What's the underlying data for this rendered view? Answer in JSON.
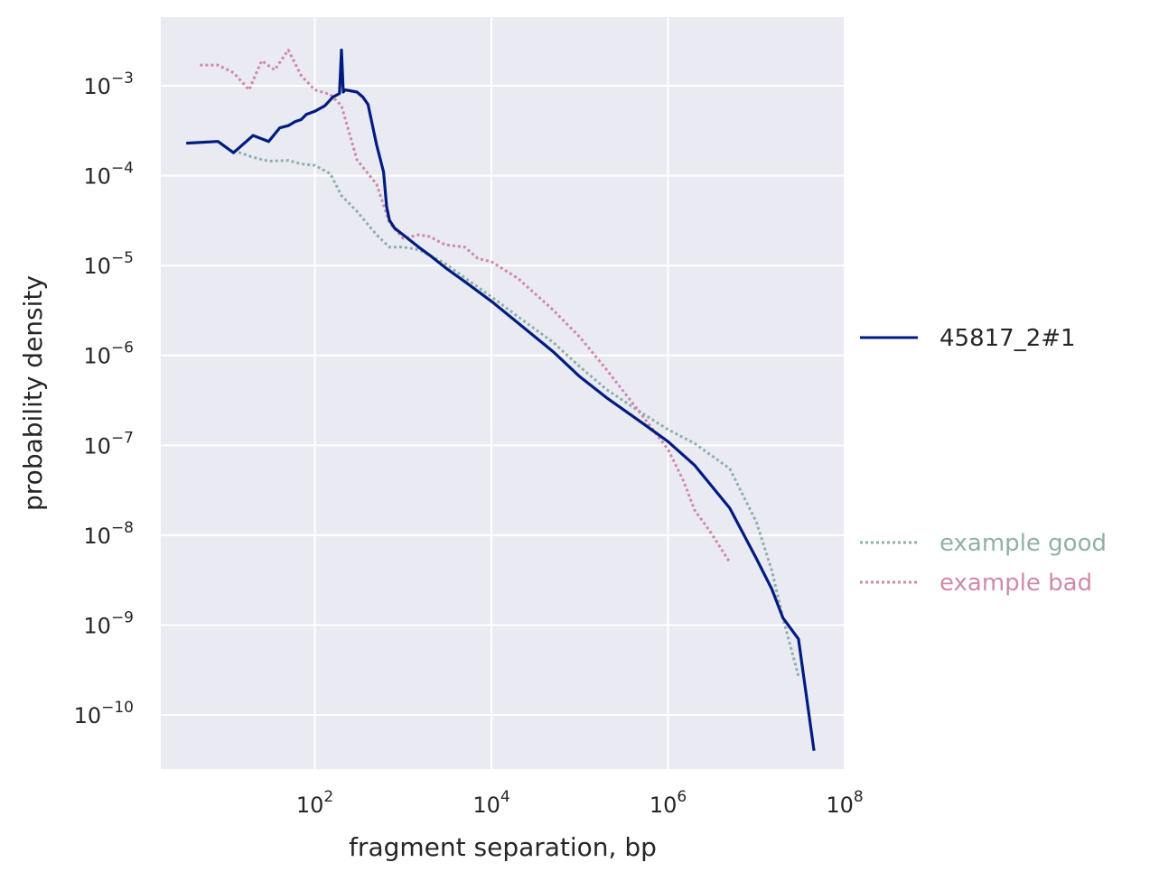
{
  "chart_data": {
    "type": "line",
    "xlabel": "fragment separation, bp",
    "ylabel": "probability density",
    "xscale": "log",
    "yscale": "log",
    "xlim": [
      1.8,
      100000000
    ],
    "ylim": [
      2.5e-11,
      0.0058
    ],
    "grid": true,
    "x_ticks": [
      {
        "value": 100,
        "base": "10",
        "exp": "2"
      },
      {
        "value": 10000,
        "base": "10",
        "exp": "4"
      },
      {
        "value": 1000000,
        "base": "10",
        "exp": "6"
      },
      {
        "value": 100000000,
        "base": "10",
        "exp": "8"
      }
    ],
    "y_ticks": [
      {
        "value": 0.001,
        "base": "10",
        "exp": "−3"
      },
      {
        "value": 0.0001,
        "base": "10",
        "exp": "−4"
      },
      {
        "value": 1e-05,
        "base": "10",
        "exp": "−5"
      },
      {
        "value": 1e-06,
        "base": "10",
        "exp": "−6"
      },
      {
        "value": 1e-07,
        "base": "10",
        "exp": "−7"
      },
      {
        "value": 1e-08,
        "base": "10",
        "exp": "−8"
      },
      {
        "value": 1e-09,
        "base": "10",
        "exp": "−9"
      },
      {
        "value": 1e-10,
        "base": "10",
        "exp": "−10"
      }
    ],
    "colors": {
      "plot_background": "#eaeaf2",
      "grid": "#ffffff",
      "sample": "#001c7f",
      "good": "#8fb0a9",
      "bad": "#d08aa6"
    },
    "legend": {
      "main": [
        {
          "name": "45817_2#1",
          "color": "#001c7f",
          "style": "solid"
        }
      ],
      "examples": [
        {
          "name": "example good",
          "color": "#8fb0a9",
          "style": "dotted"
        },
        {
          "name": "example bad",
          "color": "#d08aa6",
          "style": "dotted"
        }
      ]
    },
    "series": [
      {
        "name": "45817_2#1",
        "color": "#001c7f",
        "style": "solid",
        "x": [
          3.5,
          8,
          12,
          20,
          30,
          40,
          50,
          60,
          70,
          80,
          100,
          130,
          160,
          190,
          200,
          210,
          220,
          250,
          300,
          350,
          400,
          500,
          600,
          650,
          700,
          800,
          1000,
          1500,
          2000,
          3000,
          5000,
          10000,
          20000,
          50000,
          100000,
          200000,
          500000,
          1000000,
          2000000,
          5000000,
          10000000,
          15000000,
          20000000,
          30000000,
          45000000
        ],
        "y": [
          0.00023,
          0.00024,
          0.00018,
          0.00028,
          0.00024,
          0.00034,
          0.00036,
          0.0004,
          0.00042,
          0.00048,
          0.00052,
          0.0006,
          0.00075,
          0.00082,
          0.0025,
          0.00085,
          0.0009,
          0.00088,
          0.00085,
          0.00075,
          0.00062,
          0.00022,
          0.00011,
          4.5e-05,
          3.2e-05,
          2.6e-05,
          2.2e-05,
          1.6e-05,
          1.3e-05,
          9.5e-06,
          6.6e-06,
          4e-06,
          2.3e-06,
          1.1e-06,
          5.8e-07,
          3.4e-07,
          1.8e-07,
          1.1e-07,
          6e-08,
          2e-08,
          5.5e-09,
          2.5e-09,
          1.2e-09,
          7e-10,
          4e-11
        ]
      },
      {
        "name": "example good",
        "color": "#8fb0a9",
        "style": "dotted",
        "x": [
          12,
          20,
          30,
          50,
          70,
          100,
          150,
          200,
          300,
          500,
          700,
          1000,
          1500,
          2000,
          3000,
          5000,
          10000,
          20000,
          50000,
          100000,
          200000,
          500000,
          1000000,
          2000000,
          5000000,
          10000000,
          15000000,
          20000000,
          30000000
        ],
        "y": [
          0.00019,
          0.00016,
          0.000145,
          0.000148,
          0.000135,
          0.00013,
          0.000105,
          6e-05,
          4e-05,
          2.2e-05,
          1.6e-05,
          1.6e-05,
          1.5e-05,
          1.3e-05,
          1.05e-05,
          7.3e-06,
          4.5e-06,
          2.7e-06,
          1.4e-06,
          7.5e-07,
          4.2e-07,
          2.3e-07,
          1.5e-07,
          1.05e-07,
          5.5e-08,
          1.4e-08,
          4e-09,
          1.2e-09,
          2.7e-10
        ]
      },
      {
        "name": "example bad",
        "color": "#d08aa6",
        "style": "dotted",
        "x": [
          5,
          8,
          12,
          18,
          25,
          35,
          50,
          70,
          100,
          150,
          200,
          300,
          500,
          700,
          1000,
          1500,
          2000,
          3000,
          5000,
          7000,
          10000,
          20000,
          50000,
          100000,
          200000,
          500000,
          1000000,
          1500000,
          2000000,
          3000000,
          5000000
        ],
        "y": [
          0.0017,
          0.0017,
          0.0014,
          0.0009,
          0.0019,
          0.0015,
          0.0025,
          0.0013,
          0.0009,
          0.0008,
          0.0006,
          0.00015,
          8e-05,
          3e-05,
          2e-05,
          2.2e-05,
          2.1e-05,
          1.7e-05,
          1.6e-05,
          1.2e-05,
          1.1e-05,
          7.2e-06,
          3.2e-06,
          1.6e-06,
          7e-07,
          2.2e-07,
          9e-08,
          4e-08,
          1.9e-08,
          1.1e-08,
          5e-09
        ]
      }
    ]
  }
}
